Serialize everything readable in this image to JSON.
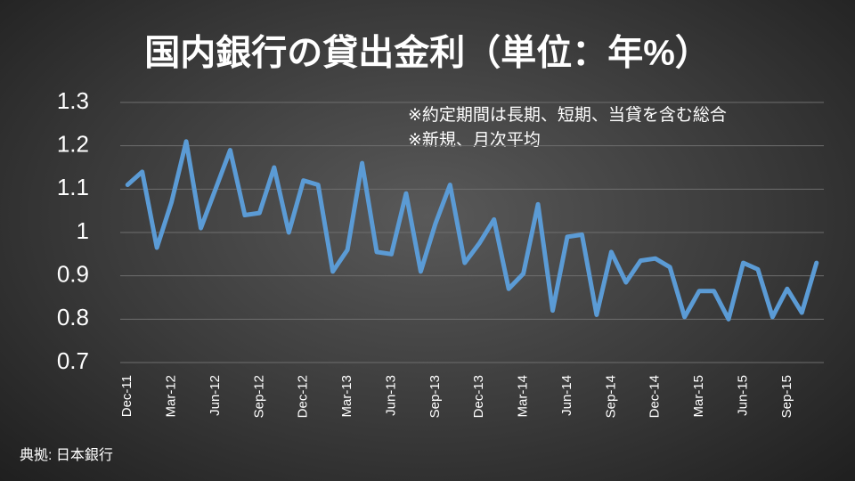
{
  "chart_data": {
    "type": "line",
    "title": "国内銀行の貸出金利（単位：年%）",
    "annotations": [
      "※約定期間は長期、短期、当貸を含む総合",
      "※新規、月次平均"
    ],
    "source": "典拠: 日本銀行",
    "categories": [
      "Dec-11",
      null,
      null,
      "Mar-12",
      null,
      null,
      "Jun-12",
      null,
      null,
      "Sep-12",
      null,
      null,
      "Dec-12",
      null,
      null,
      "Mar-13",
      null,
      null,
      "Jun-13",
      null,
      null,
      "Sep-13",
      null,
      null,
      "Dec-13",
      null,
      null,
      "Mar-14",
      null,
      null,
      "Jun-14",
      null,
      null,
      "Sep-14",
      null,
      null,
      "Dec-14",
      null,
      null,
      "Mar-15",
      null,
      null,
      "Jun-15",
      null,
      null,
      "Sep-15",
      null,
      null
    ],
    "values": [
      1.11,
      1.14,
      0.965,
      1.07,
      1.21,
      1.01,
      1.1,
      1.19,
      1.04,
      1.045,
      1.15,
      1.0,
      1.12,
      1.11,
      0.91,
      0.96,
      1.16,
      0.955,
      0.95,
      1.09,
      0.91,
      1.02,
      1.11,
      0.93,
      0.975,
      1.03,
      0.87,
      0.905,
      1.065,
      0.82,
      0.99,
      0.995,
      0.81,
      0.955,
      0.885,
      0.935,
      0.94,
      0.92,
      0.805,
      0.865,
      0.865,
      0.8,
      0.93,
      0.915,
      0.805,
      0.87,
      0.815,
      0.93
    ],
    "color": "#5b9bd5",
    "ylim": [
      0.7,
      1.3
    ],
    "yticks": [
      0.7,
      0.8,
      0.9,
      1,
      1.1,
      1.2,
      1.3
    ],
    "grid": true
  }
}
